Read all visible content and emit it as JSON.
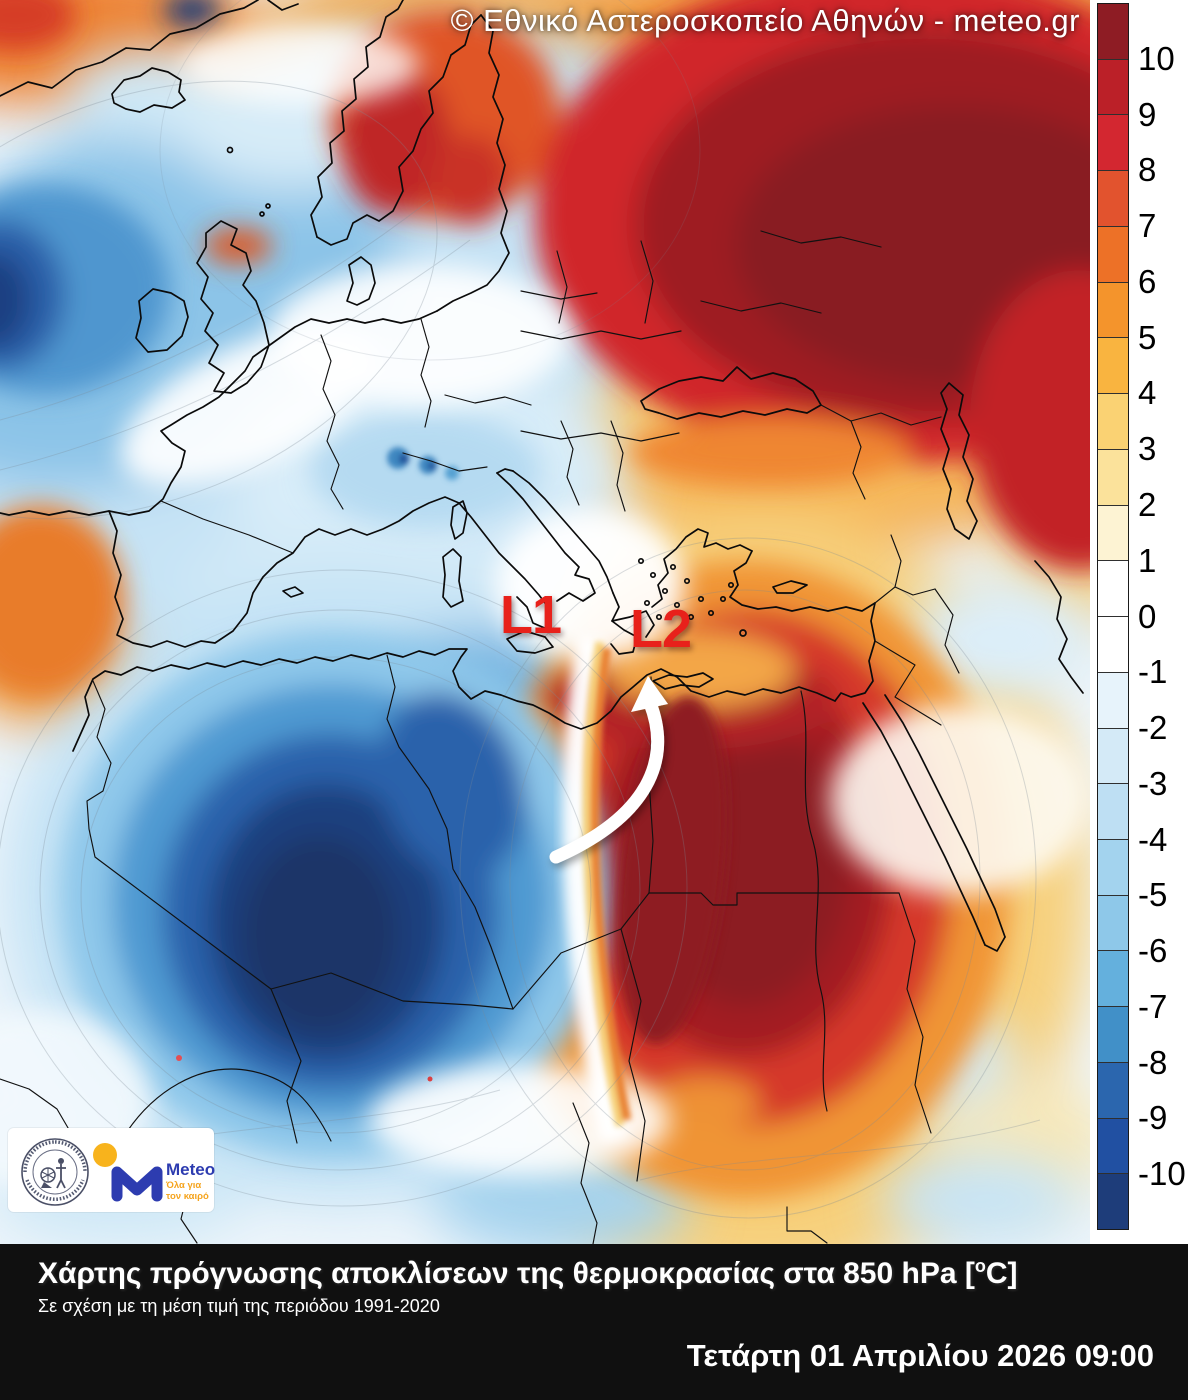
{
  "watermark": {
    "text": "© Εθνικό Αστεροσκοπείο Αθηνών - meteo.gr"
  },
  "map": {
    "l1": "L1",
    "l2": "L2",
    "label_color": "#e8211b",
    "annotations": {
      "arrow": "white curved flow arrow from the Libya/Egypt boundary pointing north toward Crete and the Aegean",
      "l1_position": "over the central Mediterranean / southern Italy",
      "l2_position": "over the southern Aegean near Crete"
    },
    "regions": {
      "warm_anomaly": [
        "Scandinavia",
        "western Russia / eastern Europe (deep red, >10)",
        "Egypt and eastern Libya (deep red)",
        "Turkey / Black Sea (orange)",
        "NE Atlantic west of Iberia (orange)"
      ],
      "cold_anomaly": [
        "central Sahara: Algeria / Mali / Niger (deep blue, < -10)",
        "NE Atlantic south of Iceland",
        "central Europe / Alps",
        "bottom Sahel strip (light blue)"
      ]
    },
    "city_markers": 2
  },
  "colorbar": {
    "ticks": [
      "10",
      "9",
      "8",
      "7",
      "6",
      "5",
      "4",
      "3",
      "2",
      "1",
      "0",
      "-1",
      "-2",
      "-3",
      "-4",
      "-5",
      "-6",
      "-7",
      "-8",
      "-9",
      "-10"
    ],
    "segment_colors": [
      "#8e1c24",
      "#bb2028",
      "#d32730",
      "#e2532e",
      "#ed7127",
      "#f4942c",
      "#f9b440",
      "#fad273",
      "#fbe29b",
      "#fdf3d3",
      "#ffffff",
      "#ffffff",
      "#e7f3fb",
      "#d4eaf7",
      "#bedff3",
      "#a3d3ee",
      "#8ec8e9",
      "#64b0dd",
      "#4190c8",
      "#2b66ae",
      "#2150a2",
      "#1e3d7a"
    ],
    "range": "[-10, 10]"
  },
  "logos": {
    "noa_seal": "national-observatory-of-athens-seal",
    "meteo_name": "Meteo",
    "meteo_tagline_line1": "Όλα για",
    "meteo_tagline_line2": "τον καιρό",
    "meteo_blue": "#2d3cb0",
    "meteo_yellow": "#f8b31c",
    "tagline_orange": "#f5a41e"
  },
  "footer": {
    "title_text": "Χάρτης πρόγνωσης αποκλίσεων της θερμοκρασίας στα 850 hPa",
    "unit_open": "[",
    "unit_sup": "o",
    "unit_close": "C]",
    "subtitle": "Σε σχέση με τη μέση τιμή της περιόδου 1991-2020",
    "datetime": "Τετάρτη 01 Απριλίου 2026 09:00",
    "background": "#101010"
  }
}
